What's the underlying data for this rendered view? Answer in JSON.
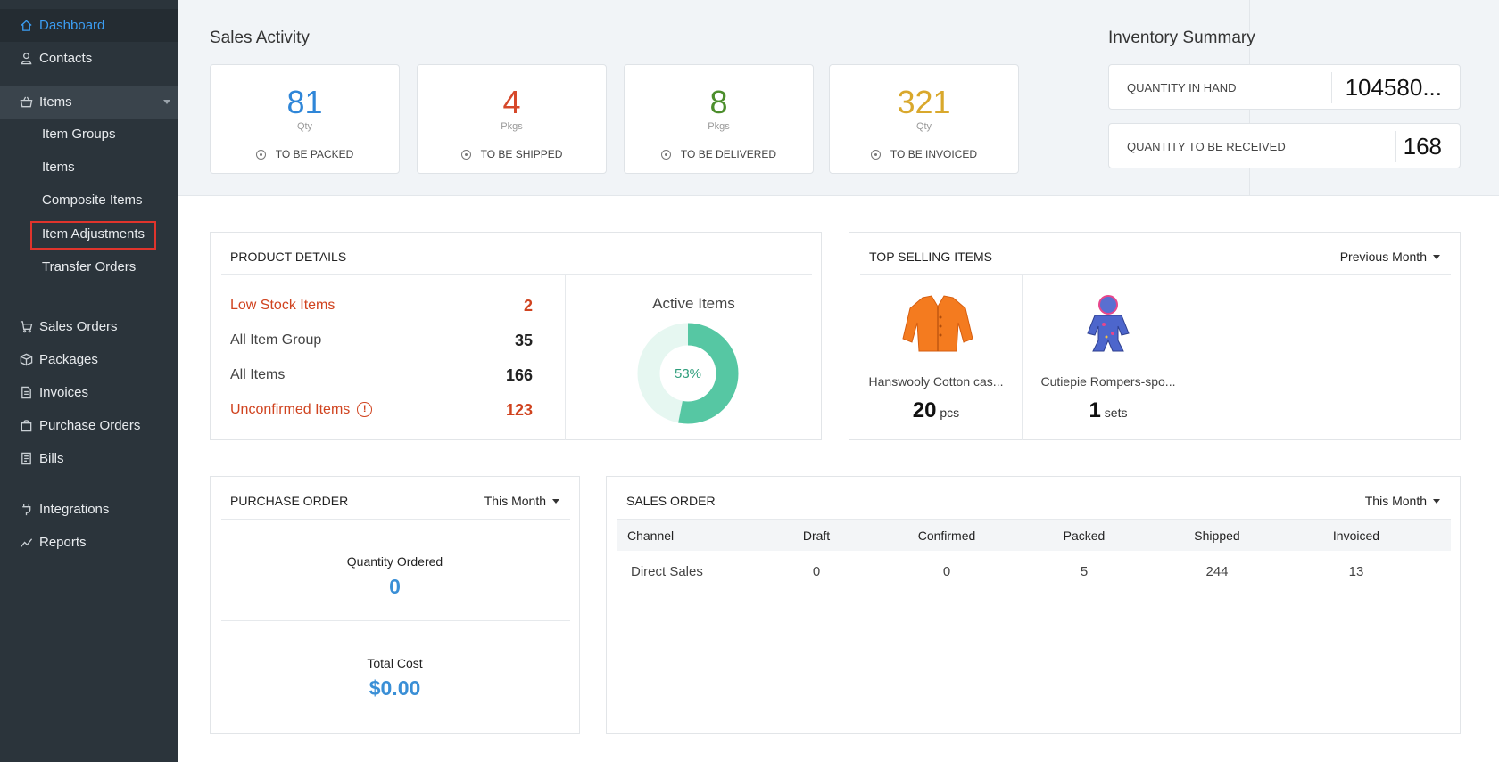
{
  "sidebar": {
    "items": [
      {
        "label": "Dashboard",
        "icon": "home-icon"
      },
      {
        "label": "Contacts",
        "icon": "user-icon"
      },
      {
        "label": "Items",
        "icon": "basket-icon"
      }
    ],
    "sub_items": [
      "Item Groups",
      "Items",
      "Composite Items",
      "Item Adjustments",
      "Transfer Orders"
    ],
    "items2": [
      {
        "label": "Sales Orders",
        "icon": "cart-icon"
      },
      {
        "label": "Packages",
        "icon": "package-icon"
      },
      {
        "label": "Invoices",
        "icon": "invoice-icon"
      },
      {
        "label": "Purchase Orders",
        "icon": "bag-icon"
      },
      {
        "label": "Bills",
        "icon": "bill-icon"
      }
    ],
    "items3": [
      {
        "label": "Integrations",
        "icon": "plug-icon"
      },
      {
        "label": "Reports",
        "icon": "chart-icon"
      }
    ]
  },
  "sales_activity": {
    "title": "Sales Activity",
    "cards": [
      {
        "value": "81",
        "unit": "Qty",
        "label": "TO BE PACKED",
        "color": "#2f86d8"
      },
      {
        "value": "4",
        "unit": "Pkgs",
        "label": "TO BE SHIPPED",
        "color": "#d6482a"
      },
      {
        "value": "8",
        "unit": "Pkgs",
        "label": "TO BE DELIVERED",
        "color": "#4c8e2c"
      },
      {
        "value": "321",
        "unit": "Qty",
        "label": "TO BE INVOICED",
        "color": "#d9a82c"
      }
    ]
  },
  "inventory_summary": {
    "title": "Inventory Summary",
    "in_hand_label": "QUANTITY IN HAND",
    "in_hand_value": "104580...",
    "to_receive_label": "QUANTITY TO BE RECEIVED",
    "to_receive_value": "168"
  },
  "product_details": {
    "title": "PRODUCT DETAILS",
    "rows": [
      {
        "label": "Low Stock Items",
        "value": "2"
      },
      {
        "label": "All Item Group",
        "value": "35"
      },
      {
        "label": "All Items",
        "value": "166"
      },
      {
        "label": "Unconfirmed Items",
        "value": "123"
      }
    ],
    "active_title": "Active Items",
    "active_percent": "53%",
    "active_fraction": 0.53,
    "warn_glyph": "!"
  },
  "top_selling": {
    "title": "TOP SELLING ITEMS",
    "period": "Previous Month",
    "items": [
      {
        "name": "Hanswooly Cotton cas...",
        "qty": "20",
        "unit": "pcs"
      },
      {
        "name": "Cutiepie Rompers-spo...",
        "qty": "1",
        "unit": "sets"
      }
    ]
  },
  "purchase_order": {
    "title": "PURCHASE ORDER",
    "period": "This Month",
    "qty_label": "Quantity Ordered",
    "qty_value": "0",
    "cost_label": "Total Cost",
    "cost_value": "$0.00"
  },
  "sales_order": {
    "title": "SALES ORDER",
    "period": "This Month",
    "headers": [
      "Channel",
      "Draft",
      "Confirmed",
      "Packed",
      "Shipped",
      "Invoiced"
    ],
    "rows": [
      [
        "Direct Sales",
        "0",
        "0",
        "5",
        "244",
        "13"
      ]
    ]
  }
}
